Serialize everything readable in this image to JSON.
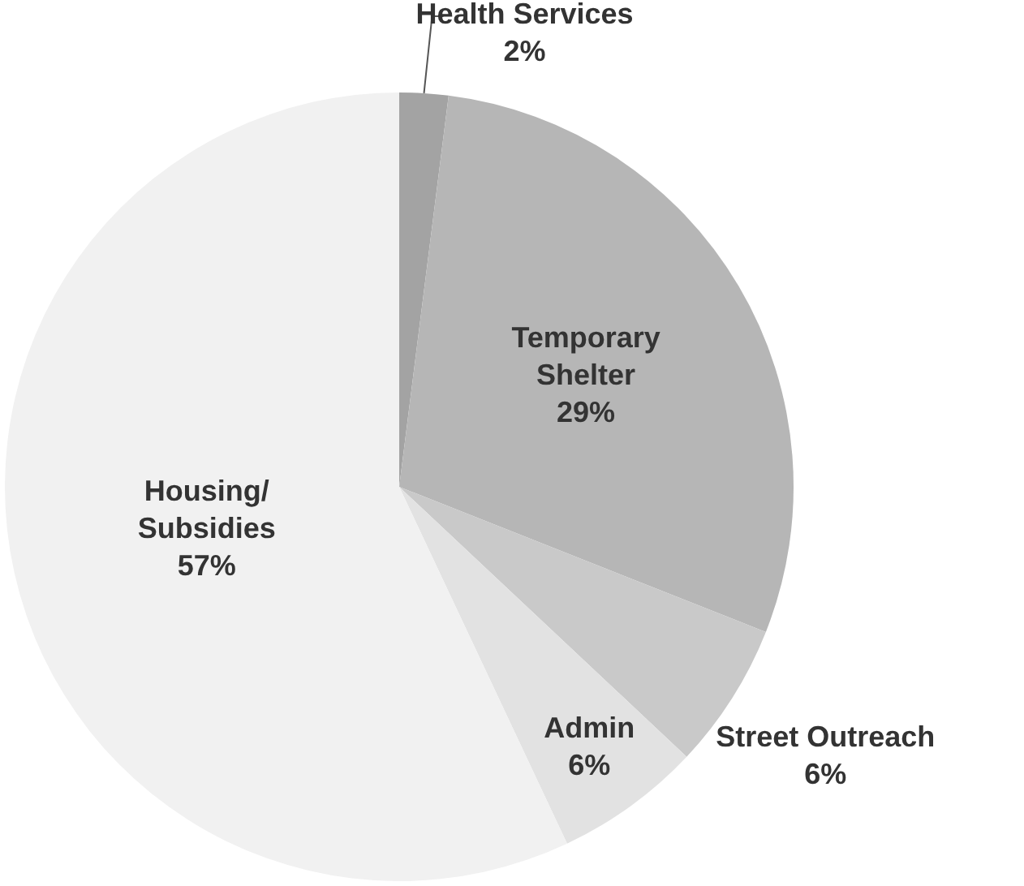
{
  "chart_data": {
    "type": "pie",
    "categories": [
      "Health Services",
      "Temporary Shelter",
      "Street Outreach",
      "Admin",
      "Housing/ Subsidies"
    ],
    "values": [
      2,
      29,
      6,
      6,
      57
    ],
    "colors": [
      "#a3a3a3",
      "#b6b6b6",
      "#c9c9c9",
      "#e2e2e2",
      "#f1f1f1"
    ],
    "value_labels": [
      "2%",
      "29%",
      "6%",
      "6%",
      "57%"
    ],
    "legend": false
  }
}
